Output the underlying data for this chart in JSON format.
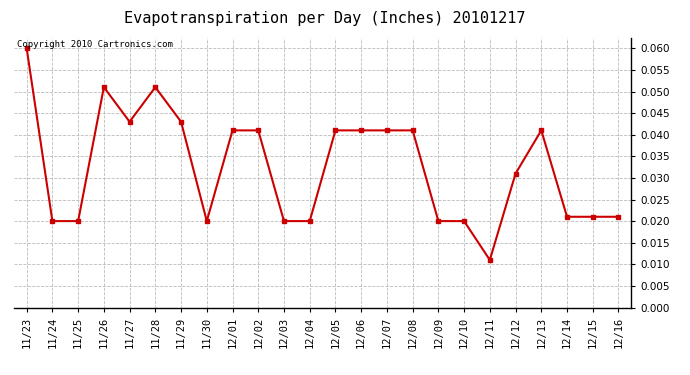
{
  "title": "Evapotranspiration per Day (Inches) 20101217",
  "copyright_text": "Copyright 2010 Cartronics.com",
  "x_labels": [
    "11/23",
    "11/24",
    "11/25",
    "11/26",
    "11/27",
    "11/28",
    "11/29",
    "11/30",
    "12/01",
    "12/02",
    "12/03",
    "12/04",
    "12/05",
    "12/06",
    "12/07",
    "12/08",
    "12/09",
    "12/10",
    "12/11",
    "12/12",
    "12/13",
    "12/14",
    "12/15",
    "12/16"
  ],
  "y_values": [
    0.06,
    0.02,
    0.02,
    0.051,
    0.043,
    0.051,
    0.043,
    0.02,
    0.041,
    0.041,
    0.02,
    0.02,
    0.041,
    0.041,
    0.041,
    0.041,
    0.02,
    0.02,
    0.011,
    0.031,
    0.041,
    0.021,
    0.021,
    0.021
  ],
  "line_color": "#cc0000",
  "marker": "s",
  "marker_size": 3,
  "ylim": [
    0.0,
    0.0625
  ],
  "yticks": [
    0.0,
    0.005,
    0.01,
    0.015,
    0.02,
    0.025,
    0.03,
    0.035,
    0.04,
    0.045,
    0.05,
    0.055,
    0.06
  ],
  "background_color": "#ffffff",
  "grid_color": "#bbbbbb",
  "title_fontsize": 11,
  "label_fontsize": 7.5,
  "copyright_fontsize": 6.5
}
